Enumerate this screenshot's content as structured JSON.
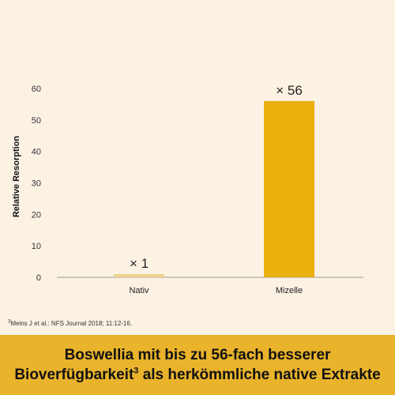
{
  "chart_data": {
    "type": "bar",
    "categories": [
      "Nativ",
      "Mizelle"
    ],
    "values": [
      1,
      56
    ],
    "data_labels": [
      "× 1",
      "× 56"
    ],
    "title": "",
    "xlabel": "",
    "ylabel": "Relative Resorption",
    "ylim": [
      0,
      60
    ],
    "yticks": [
      0,
      10,
      20,
      30,
      40,
      50,
      60
    ],
    "grid": false,
    "legend": "none",
    "colors": {
      "Nativ": "#f0d28c",
      "Mizelle": "#e9b00e",
      "axis": "#999999"
    }
  },
  "footnote": {
    "marker": "3",
    "text": "Meins J et al.: NFS Journal 2018; 11:12-16."
  },
  "banner": {
    "background": "#e9b32b",
    "line1": "Boswellia mit bis zu 56-fach besserer",
    "line2_pre": "Bioverfügbarkeit",
    "line2_sup": "3",
    "line2_post": " als herkömmliche native Extrakte"
  }
}
